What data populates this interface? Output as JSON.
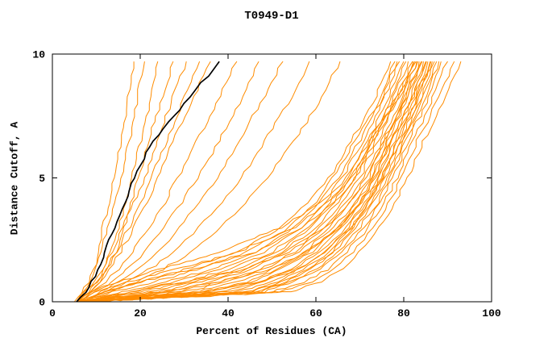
{
  "chart_data": {
    "type": "line",
    "title": "T0949-D1",
    "xlabel": "Percent of Residues (CA)",
    "ylabel": "Distance Cutoff, A",
    "xlim": [
      0,
      100
    ],
    "ylim": [
      0,
      10
    ],
    "xticks": [
      0,
      20,
      40,
      60,
      80,
      100
    ],
    "yticks": [
      0,
      5,
      10
    ],
    "grid": false,
    "legend_position": "none",
    "colors": {
      "model_line": "#ff8c00",
      "highlight_line": "#000000",
      "axis": "#000000",
      "background": "#ffffff"
    },
    "y_levels": [
      0,
      0.4,
      0.8,
      1.3,
      2,
      3,
      4,
      5,
      6.5,
      8,
      9.7
    ],
    "series": [
      {
        "color": "#ff8c00",
        "highlight": false,
        "x_at": [
          5,
          7,
          8.5,
          9.5,
          10.5,
          11.5,
          13,
          14,
          15.5,
          17,
          18.5
        ]
      },
      {
        "color": "#ff8c00",
        "highlight": false,
        "x_at": [
          5.5,
          7,
          8,
          9.5,
          11,
          12.5,
          14,
          15.5,
          17.5,
          19,
          21
        ]
      },
      {
        "color": "#ff8c00",
        "highlight": false,
        "x_at": [
          5.5,
          8,
          10,
          11.5,
          13,
          15,
          16.5,
          18,
          20,
          22,
          24
        ]
      },
      {
        "color": "#ff8c00",
        "highlight": false,
        "x_at": [
          6,
          8.5,
          10.5,
          12.5,
          14.5,
          16.5,
          18,
          19.5,
          22,
          24.5,
          27.5
        ]
      },
      {
        "color": "#ff8c00",
        "highlight": false,
        "x_at": [
          5.5,
          7.5,
          9.5,
          11.5,
          13.5,
          16,
          18.5,
          21,
          24,
          27,
          30.5
        ]
      },
      {
        "color": "#ff8c00",
        "highlight": false,
        "x_at": [
          6,
          8,
          10,
          12,
          14.5,
          17.5,
          20,
          22.5,
          26,
          29.5,
          33.5
        ]
      },
      {
        "color": "#ff8c00",
        "highlight": false,
        "x_at": [
          5.5,
          8.5,
          11,
          13,
          15.5,
          18.5,
          21.5,
          24,
          27.5,
          31.5,
          36
        ]
      },
      {
        "color": "#ff8c00",
        "highlight": false,
        "x_at": [
          6,
          9,
          12,
          15,
          18,
          22,
          25.5,
          28.5,
          33,
          37.5,
          42
        ]
      },
      {
        "color": "#ff8c00",
        "highlight": false,
        "x_at": [
          6,
          10,
          13.5,
          17,
          21,
          25.5,
          29.5,
          33,
          38,
          42.5,
          47
        ]
      },
      {
        "color": "#ff8c00",
        "highlight": false,
        "x_at": [
          6.5,
          11,
          15,
          19.5,
          24,
          29,
          33.5,
          37.5,
          42.5,
          47.5,
          52.5
        ]
      },
      {
        "color": "#ff8c00",
        "highlight": false,
        "x_at": [
          6,
          12,
          17,
          22,
          27.5,
          33.5,
          38.5,
          43,
          48.5,
          53.5,
          58.5
        ]
      },
      {
        "color": "#ff8c00",
        "highlight": false,
        "x_at": [
          6.5,
          13,
          19,
          25,
          31.5,
          38.5,
          44,
          49,
          55,
          60.5,
          65.5
        ]
      },
      {
        "color": "#ff8c00",
        "highlight": false,
        "x_at": [
          5.5,
          12,
          20,
          30,
          42,
          52,
          58,
          63,
          68,
          73,
          77
        ]
      },
      {
        "color": "#ff8c00",
        "highlight": false,
        "x_at": [
          6,
          14,
          23,
          33,
          44,
          54,
          60,
          64,
          69,
          74,
          78
        ]
      },
      {
        "color": "#ff8c00",
        "highlight": false,
        "x_at": [
          5.5,
          16,
          26,
          36,
          46,
          55,
          61,
          65,
          70,
          74.5,
          78.5
        ]
      },
      {
        "color": "#ff8c00",
        "highlight": false,
        "x_at": [
          6.5,
          18,
          28,
          38,
          48,
          57,
          62,
          66,
          71,
          75,
          79
        ]
      },
      {
        "color": "#ff8c00",
        "highlight": false,
        "x_at": [
          5.5,
          20,
          30,
          40,
          50,
          58,
          63,
          67,
          72,
          76,
          80
        ]
      },
      {
        "color": "#ff8c00",
        "highlight": false,
        "x_at": [
          6,
          22,
          32,
          42,
          51,
          59,
          64,
          68,
          72.5,
          76.5,
          80.5
        ]
      },
      {
        "color": "#ff8c00",
        "highlight": false,
        "x_at": [
          6.5,
          24,
          34,
          44,
          52,
          60,
          65,
          69,
          73,
          77,
          81
        ]
      },
      {
        "color": "#ff8c00",
        "highlight": false,
        "x_at": [
          5.5,
          26,
          36,
          45,
          53,
          61,
          66,
          70,
          74,
          78,
          82
        ]
      },
      {
        "color": "#ff8c00",
        "highlight": false,
        "x_at": [
          6,
          28,
          38,
          47,
          55,
          62,
          67,
          71,
          75,
          79,
          82.5
        ]
      },
      {
        "color": "#ff8c00",
        "highlight": false,
        "x_at": [
          6.5,
          30,
          40,
          48,
          56,
          63,
          68,
          72,
          75.5,
          79.5,
          83
        ]
      },
      {
        "color": "#ff8c00",
        "highlight": false,
        "x_at": [
          5.5,
          32,
          42,
          50,
          57,
          64,
          69,
          72.5,
          76,
          80,
          83.5
        ]
      },
      {
        "color": "#ff8c00",
        "highlight": false,
        "x_at": [
          6,
          34,
          44,
          51,
          58,
          65,
          69.5,
          73,
          76.5,
          80.5,
          84
        ]
      },
      {
        "color": "#ff8c00",
        "highlight": false,
        "x_at": [
          7,
          36,
          45,
          52,
          59,
          65.5,
          70,
          73.5,
          77,
          81,
          84.5
        ]
      },
      {
        "color": "#ff8c00",
        "highlight": false,
        "x_at": [
          6,
          38,
          47,
          54,
          60,
          66,
          70.5,
          74,
          77.5,
          81.5,
          85
        ]
      },
      {
        "color": "#ff8c00",
        "highlight": false,
        "x_at": [
          6.5,
          40,
          48,
          55,
          61,
          67,
          71,
          74.5,
          78,
          82,
          85.5
        ]
      },
      {
        "color": "#ff8c00",
        "highlight": false,
        "x_at": [
          5.5,
          42,
          50,
          56,
          62,
          67.5,
          71.5,
          75,
          78.5,
          82.5,
          86
        ]
      },
      {
        "color": "#ff8c00",
        "highlight": false,
        "x_at": [
          7,
          44,
          51,
          57,
          63,
          68,
          72,
          75.5,
          79,
          83,
          86.5
        ]
      },
      {
        "color": "#ff8c00",
        "highlight": false,
        "x_at": [
          6,
          45,
          52,
          58,
          63.5,
          68.5,
          72.5,
          76,
          79.5,
          83.5,
          87
        ]
      },
      {
        "color": "#ff8c00",
        "highlight": false,
        "x_at": [
          6.5,
          46,
          53,
          59,
          64,
          69,
          73,
          76.5,
          80,
          84,
          87.5
        ]
      },
      {
        "color": "#ff8c00",
        "highlight": false,
        "x_at": [
          5.5,
          47,
          54,
          60,
          65,
          70,
          74,
          77,
          80.5,
          84.5,
          88
        ]
      },
      {
        "color": "#ff8c00",
        "highlight": false,
        "x_at": [
          7,
          48,
          55,
          61,
          66,
          71,
          74.5,
          77.5,
          81,
          85,
          88.5
        ]
      },
      {
        "color": "#ff8c00",
        "highlight": false,
        "x_at": [
          6,
          35,
          47,
          56,
          62,
          68,
          72,
          75,
          78.5,
          82.5,
          86.2
        ]
      },
      {
        "color": "#ff8c00",
        "highlight": false,
        "x_at": [
          6.5,
          25,
          38,
          49,
          58,
          65,
          70,
          73.5,
          77.2,
          81.2,
          85.2
        ]
      },
      {
        "color": "#ff8c00",
        "highlight": false,
        "x_at": [
          5.5,
          18,
          30,
          43,
          54,
          62,
          67.5,
          71.5,
          75.8,
          80,
          84.2
        ]
      },
      {
        "color": "#ff8c00",
        "highlight": false,
        "x_at": [
          6,
          12,
          20,
          32,
          46,
          57,
          64,
          69,
          73.5,
          78.2,
          82.8
        ]
      },
      {
        "color": "#ff8c00",
        "highlight": false,
        "x_at": [
          6.5,
          10,
          17,
          28,
          42,
          55,
          62.5,
          68,
          73,
          78,
          83.2
        ]
      },
      {
        "color": "#ff8c00",
        "highlight": false,
        "x_at": [
          5.5,
          9,
          15,
          24,
          38,
          52,
          61,
          67,
          72.5,
          77.5,
          82.2
        ]
      },
      {
        "color": "#ff8c00",
        "highlight": false,
        "x_at": [
          7,
          50,
          57,
          62.5,
          67,
          72,
          75.5,
          78.5,
          82,
          86,
          90
        ]
      },
      {
        "color": "#ff8c00",
        "highlight": false,
        "x_at": [
          7.5,
          52,
          59,
          64,
          68.5,
          73,
          76.5,
          79.5,
          83,
          87.5,
          91.5
        ]
      },
      {
        "color": "#ff8c00",
        "highlight": false,
        "x_at": [
          8,
          54,
          61,
          66,
          70,
          74.5,
          78,
          81,
          84.5,
          89,
          93
        ]
      },
      {
        "color": "#000000",
        "highlight": true,
        "x_at": [
          5.5,
          7.5,
          9,
          10.5,
          12,
          14,
          16.5,
          18.5,
          23,
          30,
          38
        ]
      }
    ]
  }
}
